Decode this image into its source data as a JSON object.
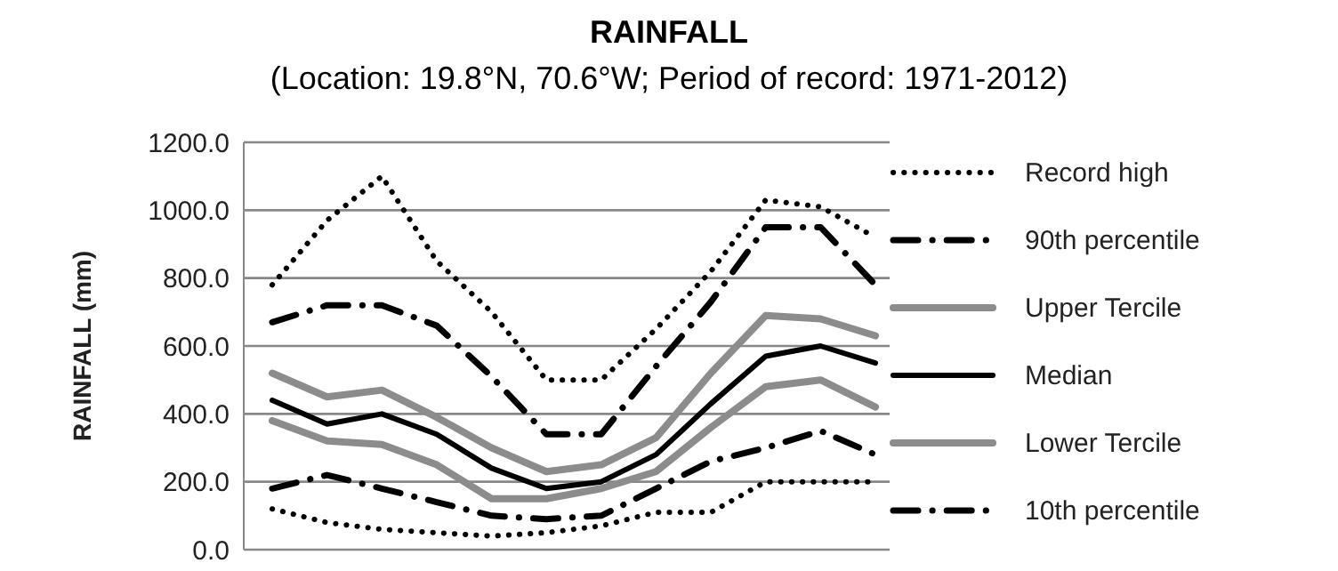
{
  "chart_data": {
    "type": "line",
    "title": "RAINFALL",
    "subtitle": "(Location: 19.8°N, 70.6°W; Period of record: 1971-2012)",
    "ylabel": "RAINFALL (mm)",
    "categories": [
      null,
      null,
      null,
      null,
      null,
      null,
      null,
      null,
      null,
      null,
      null,
      null
    ],
    "ylim": [
      0,
      1200
    ],
    "yticks": [
      {
        "value": 0,
        "label": "0.0"
      },
      {
        "value": 200,
        "label": "200.0"
      },
      {
        "value": 400,
        "label": "400.0"
      },
      {
        "value": 600,
        "label": "600.0"
      },
      {
        "value": 800,
        "label": "800.0"
      },
      {
        "value": 1000,
        "label": "1000.0"
      },
      {
        "value": 1200,
        "label": "1200.0"
      }
    ],
    "grid": "y",
    "legend": "right",
    "marker": "none",
    "series": [
      {
        "name": "Record high",
        "color": "#000000",
        "line_style": "dotted",
        "values": [
          780,
          970,
          1100,
          850,
          700,
          500,
          500,
          650,
          820,
          1030,
          1010,
          920
        ]
      },
      {
        "name": "90th percentile",
        "color": "#000000",
        "line_style": "dashdot",
        "values": [
          670,
          720,
          720,
          660,
          510,
          340,
          340,
          540,
          730,
          950,
          950,
          780
        ]
      },
      {
        "name": "Upper Tercile",
        "color": "#8c8c8c",
        "line_style": "solid",
        "values": [
          520,
          450,
          470,
          390,
          300,
          230,
          250,
          330,
          520,
          690,
          680,
          630
        ]
      },
      {
        "name": "Median",
        "color": "#000000",
        "line_style": "solid",
        "values": [
          440,
          370,
          400,
          340,
          240,
          180,
          200,
          280,
          430,
          570,
          600,
          550
        ]
      },
      {
        "name": "Lower Tercile",
        "color": "#8c8c8c",
        "line_style": "solid",
        "values": [
          380,
          320,
          310,
          250,
          150,
          150,
          180,
          230,
          360,
          480,
          500,
          420
        ]
      },
      {
        "name": "10th percentile",
        "color": "#000000",
        "line_style": "dashdot",
        "values": [
          180,
          220,
          180,
          140,
          100,
          90,
          100,
          180,
          260,
          300,
          350,
          280
        ]
      },
      {
        "color": "#000000",
        "line_style": "dotted",
        "values": [
          120,
          80,
          60,
          50,
          40,
          50,
          70,
          110,
          110,
          200,
          200,
          200
        ]
      }
    ]
  }
}
